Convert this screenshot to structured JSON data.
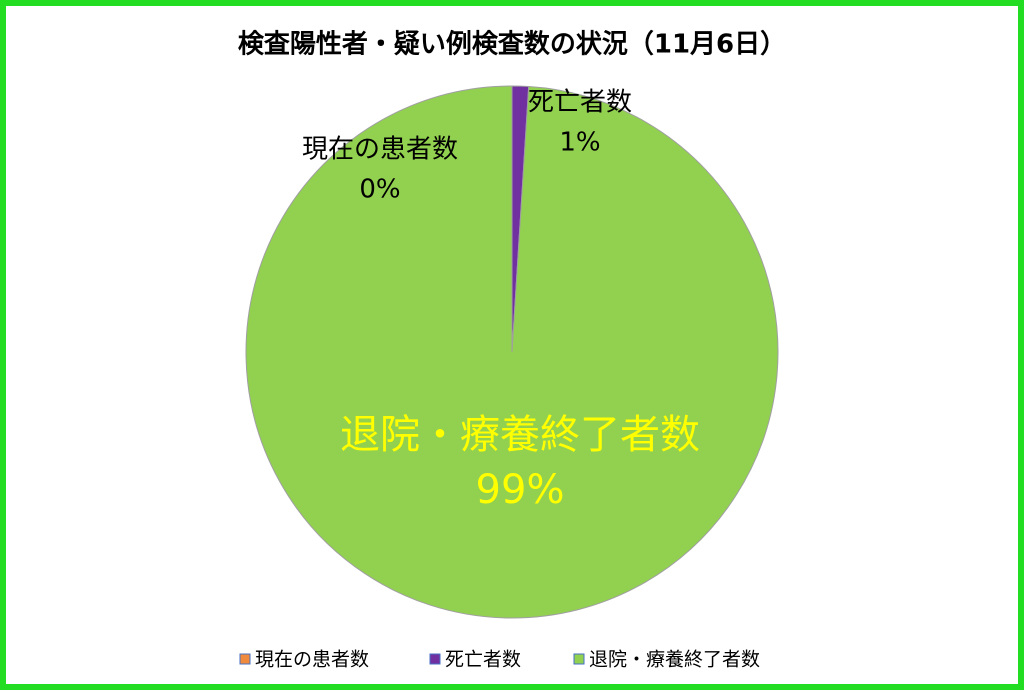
{
  "chart_data": {
    "type": "pie",
    "title": "検査陽性者・疑い例検査数の状況（11月6日）",
    "categories": [
      "現在の患者数",
      "死亡者数",
      "退院・療養終了者数"
    ],
    "values": [
      0,
      1,
      99
    ],
    "value_labels": [
      "0%",
      "1%",
      "99%"
    ],
    "colors": [
      "#f08a3c",
      "#7030a0",
      "#92d050"
    ]
  }
}
